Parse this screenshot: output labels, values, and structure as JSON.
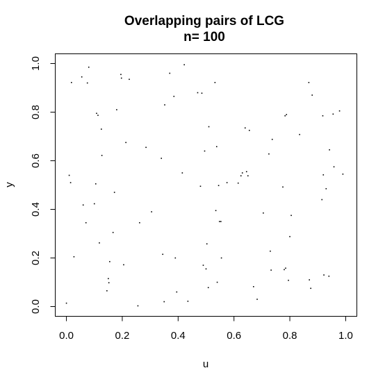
{
  "chart_data": {
    "type": "scatter",
    "title": "Overlapping pairs of LCG",
    "subtitle": "n= 100",
    "xlabel": "u",
    "ylabel": "y",
    "xlim": [
      -0.04,
      1.04
    ],
    "ylim": [
      -0.04,
      1.04
    ],
    "xticks": [
      0.0,
      0.2,
      0.4,
      0.6,
      0.8,
      1.0
    ],
    "yticks": [
      0.0,
      0.2,
      0.4,
      0.6,
      0.8,
      1.0
    ],
    "xtick_labels": [
      "0.0",
      "0.2",
      "0.4",
      "0.6",
      "0.8",
      "1.0"
    ],
    "ytick_labels": [
      "0.0",
      "0.2",
      "0.4",
      "0.6",
      "0.8",
      "1.0"
    ],
    "grid": false,
    "point_color": "#000000",
    "points": [
      [
        0.0,
        0.014
      ],
      [
        0.01,
        0.54
      ],
      [
        0.015,
        0.51
      ],
      [
        0.018,
        0.922
      ],
      [
        0.027,
        0.205
      ],
      [
        0.055,
        0.945
      ],
      [
        0.06,
        0.418
      ],
      [
        0.07,
        0.345
      ],
      [
        0.075,
        0.92
      ],
      [
        0.08,
        0.985
      ],
      [
        0.1,
        0.423
      ],
      [
        0.105,
        0.505
      ],
      [
        0.108,
        0.795
      ],
      [
        0.113,
        0.787
      ],
      [
        0.118,
        0.262
      ],
      [
        0.125,
        0.73
      ],
      [
        0.127,
        0.622
      ],
      [
        0.145,
        0.065
      ],
      [
        0.15,
        0.115
      ],
      [
        0.152,
        0.098
      ],
      [
        0.155,
        0.185
      ],
      [
        0.167,
        0.305
      ],
      [
        0.172,
        0.47
      ],
      [
        0.18,
        0.81
      ],
      [
        0.195,
        0.955
      ],
      [
        0.197,
        0.94
      ],
      [
        0.205,
        0.172
      ],
      [
        0.213,
        0.675
      ],
      [
        0.225,
        0.935
      ],
      [
        0.256,
        0.003
      ],
      [
        0.262,
        0.345
      ],
      [
        0.285,
        0.655
      ],
      [
        0.305,
        0.39
      ],
      [
        0.34,
        0.61
      ],
      [
        0.345,
        0.215
      ],
      [
        0.35,
        0.02
      ],
      [
        0.352,
        0.83
      ],
      [
        0.37,
        0.96
      ],
      [
        0.385,
        0.865
      ],
      [
        0.39,
        0.2
      ],
      [
        0.395,
        0.06
      ],
      [
        0.415,
        0.55
      ],
      [
        0.422,
        0.995
      ],
      [
        0.435,
        0.022
      ],
      [
        0.47,
        0.88
      ],
      [
        0.48,
        0.495
      ],
      [
        0.485,
        0.878
      ],
      [
        0.49,
        0.17
      ],
      [
        0.495,
        0.64
      ],
      [
        0.5,
        0.155
      ],
      [
        0.503,
        0.258
      ],
      [
        0.508,
        0.078
      ],
      [
        0.51,
        0.74
      ],
      [
        0.532,
        0.922
      ],
      [
        0.535,
        0.395
      ],
      [
        0.538,
        0.658
      ],
      [
        0.54,
        0.1
      ],
      [
        0.545,
        0.498
      ],
      [
        0.548,
        0.35
      ],
      [
        0.553,
        0.35
      ],
      [
        0.555,
        0.2
      ],
      [
        0.575,
        0.51
      ],
      [
        0.615,
        0.508
      ],
      [
        0.625,
        0.538
      ],
      [
        0.63,
        0.55
      ],
      [
        0.64,
        0.735
      ],
      [
        0.645,
        0.555
      ],
      [
        0.65,
        0.538
      ],
      [
        0.655,
        0.725
      ],
      [
        0.67,
        0.082
      ],
      [
        0.683,
        0.03
      ],
      [
        0.705,
        0.385
      ],
      [
        0.725,
        0.628
      ],
      [
        0.73,
        0.228
      ],
      [
        0.733,
        0.15
      ],
      [
        0.737,
        0.688
      ],
      [
        0.775,
        0.492
      ],
      [
        0.78,
        0.152
      ],
      [
        0.783,
        0.785
      ],
      [
        0.785,
        0.158
      ],
      [
        0.788,
        0.79
      ],
      [
        0.795,
        0.108
      ],
      [
        0.8,
        0.288
      ],
      [
        0.805,
        0.375
      ],
      [
        0.835,
        0.708
      ],
      [
        0.868,
        0.922
      ],
      [
        0.87,
        0.11
      ],
      [
        0.875,
        0.075
      ],
      [
        0.88,
        0.87
      ],
      [
        0.915,
        0.44
      ],
      [
        0.918,
        0.785
      ],
      [
        0.92,
        0.542
      ],
      [
        0.922,
        0.13
      ],
      [
        0.93,
        0.485
      ],
      [
        0.94,
        0.125
      ],
      [
        0.942,
        0.645
      ],
      [
        0.955,
        0.792
      ],
      [
        0.958,
        0.575
      ],
      [
        0.978,
        0.805
      ],
      [
        0.99,
        0.545
      ]
    ]
  }
}
